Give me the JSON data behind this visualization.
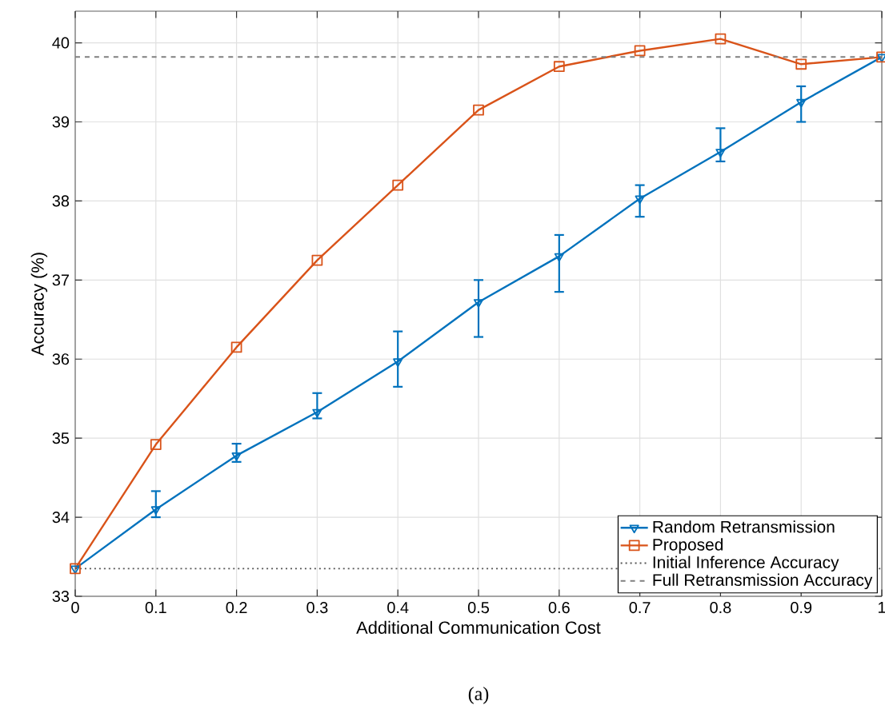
{
  "chart_data": {
    "type": "line",
    "xlabel": "Additional Communication Cost",
    "ylabel": "Accuracy (%)",
    "x": [
      0,
      0.1,
      0.2,
      0.3,
      0.4,
      0.5,
      0.6,
      0.7,
      0.8,
      0.9,
      1
    ],
    "series": [
      {
        "name": "Random Retransmission",
        "color": "#0072bd",
        "marker": "triangle",
        "values": [
          33.35,
          34.1,
          34.78,
          35.33,
          35.97,
          36.72,
          37.3,
          38.03,
          38.62,
          39.25,
          39.82
        ],
        "errors": [
          null,
          [
            34.0,
            34.33
          ],
          [
            34.7,
            34.93
          ],
          [
            35.25,
            35.57
          ],
          [
            35.65,
            36.35
          ],
          [
            36.28,
            37.0
          ],
          [
            36.85,
            37.57
          ],
          [
            37.8,
            38.2
          ],
          [
            38.5,
            38.92
          ],
          [
            39.0,
            39.45
          ],
          null
        ]
      },
      {
        "name": "Proposed",
        "color": "#d95319",
        "marker": "square",
        "values": [
          33.35,
          34.92,
          36.15,
          37.25,
          38.2,
          39.15,
          39.7,
          39.9,
          40.05,
          39.73,
          39.82
        ]
      }
    ],
    "ref_lines": [
      {
        "axis": "y",
        "value": 33.35,
        "label": "Initial Inference Accuracy",
        "color": "#555555",
        "line_style": "dotted"
      },
      {
        "axis": "y",
        "value": 39.82,
        "label": "Full Retransmission Accuracy",
        "color": "#808080",
        "line_style": "dashed"
      }
    ],
    "xlim": [
      0,
      1
    ],
    "ylim": [
      33,
      40.4
    ],
    "xticks": [
      0,
      0.1,
      0.2,
      0.3,
      0.4,
      0.5,
      0.6,
      0.7,
      0.8,
      0.9,
      1
    ],
    "yticks": [
      33,
      34,
      35,
      36,
      37,
      38,
      39,
      40
    ],
    "grid": true,
    "legend": "bottom right",
    "line_style": "solid",
    "annotations": [
      "(a)"
    ]
  }
}
